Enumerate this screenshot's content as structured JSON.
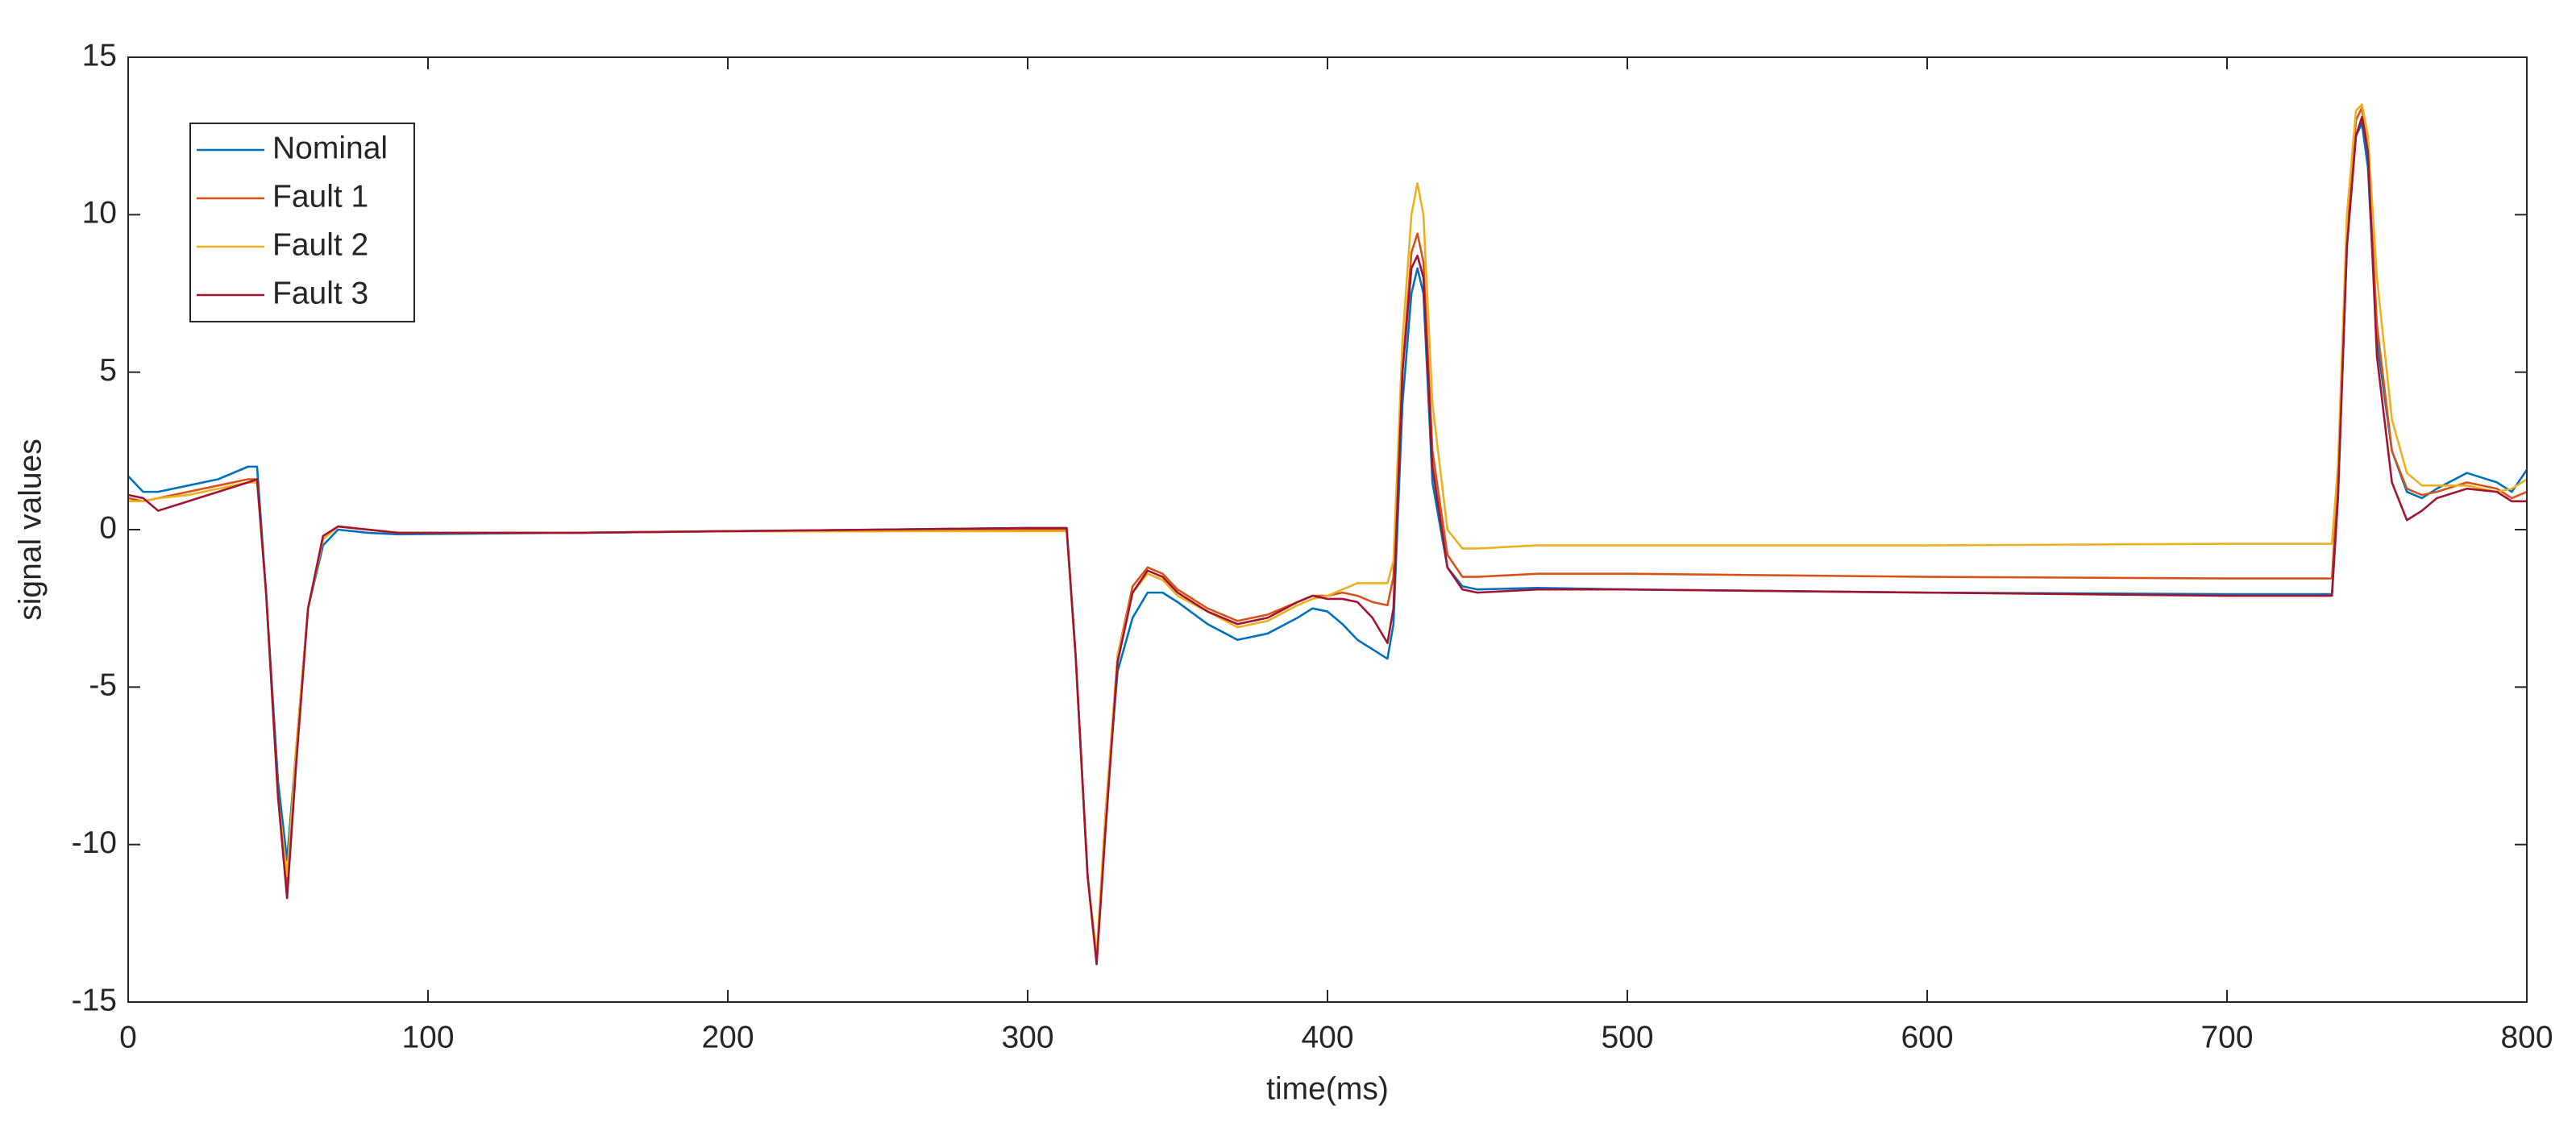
{
  "chart_data": {
    "type": "line",
    "x_label": "time(ms)",
    "y_label": "signal values",
    "xlim": [
      0,
      800
    ],
    "xticks": [
      0,
      100,
      200,
      300,
      400,
      500,
      600,
      700,
      800
    ],
    "ylim": [
      -15,
      15
    ],
    "yticks": [
      -15,
      -10,
      -5,
      0,
      5,
      10,
      15
    ],
    "grid": false,
    "legend": "upper left",
    "x": [
      0,
      5,
      10,
      20,
      30,
      40,
      43,
      46,
      50,
      53,
      56,
      60,
      65,
      70,
      80,
      90,
      150,
      200,
      250,
      300,
      313,
      316,
      320,
      323,
      326,
      330,
      335,
      340,
      345,
      350,
      360,
      370,
      380,
      390,
      395,
      400,
      405,
      410,
      415,
      420,
      422,
      425,
      428,
      430,
      432,
      435,
      440,
      445,
      450,
      470,
      500,
      600,
      700,
      735,
      737,
      740,
      743,
      745,
      747,
      750,
      755,
      760,
      765,
      770,
      780,
      790,
      795,
      800
    ],
    "series": [
      {
        "name": "Nominal",
        "color": "#0072BD",
        "values": [
          1.7,
          1.2,
          1.2,
          1.4,
          1.6,
          2.0,
          2.0,
          -2,
          -8,
          -10.5,
          -7,
          -2.5,
          -0.5,
          0,
          -0.1,
          -0.15,
          -0.1,
          -0.05,
          0,
          0.05,
          0.05,
          -4,
          -11,
          -13.7,
          -9,
          -4.5,
          -2.8,
          -2,
          -2,
          -2.3,
          -3,
          -3.5,
          -3.3,
          -2.8,
          -2.5,
          -2.6,
          -3,
          -3.5,
          -3.8,
          -4.1,
          -3,
          4,
          7.5,
          8.3,
          7.5,
          1.5,
          -1.2,
          -1.8,
          -1.9,
          -1.85,
          -1.9,
          -2,
          -2.05,
          -2.05,
          1,
          9,
          12.5,
          12.9,
          11.5,
          6,
          2.5,
          1.2,
          1.0,
          1.3,
          1.8,
          1.5,
          1.2,
          1.9
        ]
      },
      {
        "name": "Fault 1",
        "color": "#D95319",
        "values": [
          1,
          0.9,
          1.0,
          1.2,
          1.4,
          1.6,
          1.6,
          -2,
          -8.5,
          -11.2,
          -7,
          -2.5,
          -0.3,
          0.1,
          0,
          -0.1,
          -0.1,
          -0.05,
          -0.05,
          0,
          0,
          -4,
          -11,
          -13.6,
          -9,
          -4,
          -1.8,
          -1.2,
          -1.4,
          -1.9,
          -2.5,
          -2.9,
          -2.7,
          -2.3,
          -2.1,
          -2.1,
          -2.0,
          -2.1,
          -2.3,
          -2.4,
          -1.5,
          5,
          8.8,
          9.4,
          8.5,
          2.5,
          -0.8,
          -1.5,
          -1.5,
          -1.4,
          -1.4,
          -1.5,
          -1.55,
          -1.55,
          1.5,
          9.5,
          13,
          13.4,
          12,
          6.5,
          2.5,
          1.3,
          1.1,
          1.2,
          1.5,
          1.3,
          1.0,
          1.2
        ]
      },
      {
        "name": "Fault 2",
        "color": "#EDB120",
        "values": [
          0.9,
          0.9,
          1.0,
          1.1,
          1.3,
          1.5,
          1.5,
          -2,
          -8.5,
          -11,
          -7,
          -2.5,
          -0.3,
          0.1,
          0,
          -0.1,
          -0.1,
          -0.05,
          -0.05,
          -0.05,
          -0.05,
          -4,
          -11,
          -13.5,
          -9,
          -4,
          -2,
          -1.4,
          -1.6,
          -2.1,
          -2.6,
          -3.1,
          -2.9,
          -2.4,
          -2.2,
          -2.1,
          -1.9,
          -1.7,
          -1.7,
          -1.7,
          -1,
          6,
          10,
          11,
          10,
          4,
          0,
          -0.6,
          -0.6,
          -0.5,
          -0.5,
          -0.5,
          -0.45,
          -0.45,
          2,
          10,
          13.3,
          13.5,
          12.5,
          8,
          3.5,
          1.8,
          1.4,
          1.4,
          1.4,
          1.2,
          1.3,
          1.6
        ]
      },
      {
        "name": "Fault 3",
        "color": "#A2142F",
        "values": [
          1.1,
          1.0,
          0.6,
          0.9,
          1.2,
          1.5,
          1.6,
          -2,
          -8.5,
          -11.7,
          -7.5,
          -2.5,
          -0.2,
          0.1,
          0,
          -0.1,
          -0.1,
          -0.05,
          0,
          0.05,
          0.05,
          -4,
          -11,
          -13.8,
          -9.5,
          -4.2,
          -2,
          -1.3,
          -1.5,
          -2,
          -2.6,
          -3,
          -2.8,
          -2.3,
          -2.1,
          -2.2,
          -2.2,
          -2.3,
          -2.8,
          -3.6,
          -2.5,
          5,
          8.3,
          8.7,
          8,
          2,
          -1.2,
          -1.9,
          -2,
          -1.9,
          -1.9,
          -2,
          -2.1,
          -2.1,
          1,
          9,
          12.5,
          13.1,
          12,
          5.5,
          1.5,
          0.3,
          0.6,
          1,
          1.3,
          1.2,
          0.9,
          0.9
        ]
      }
    ]
  }
}
